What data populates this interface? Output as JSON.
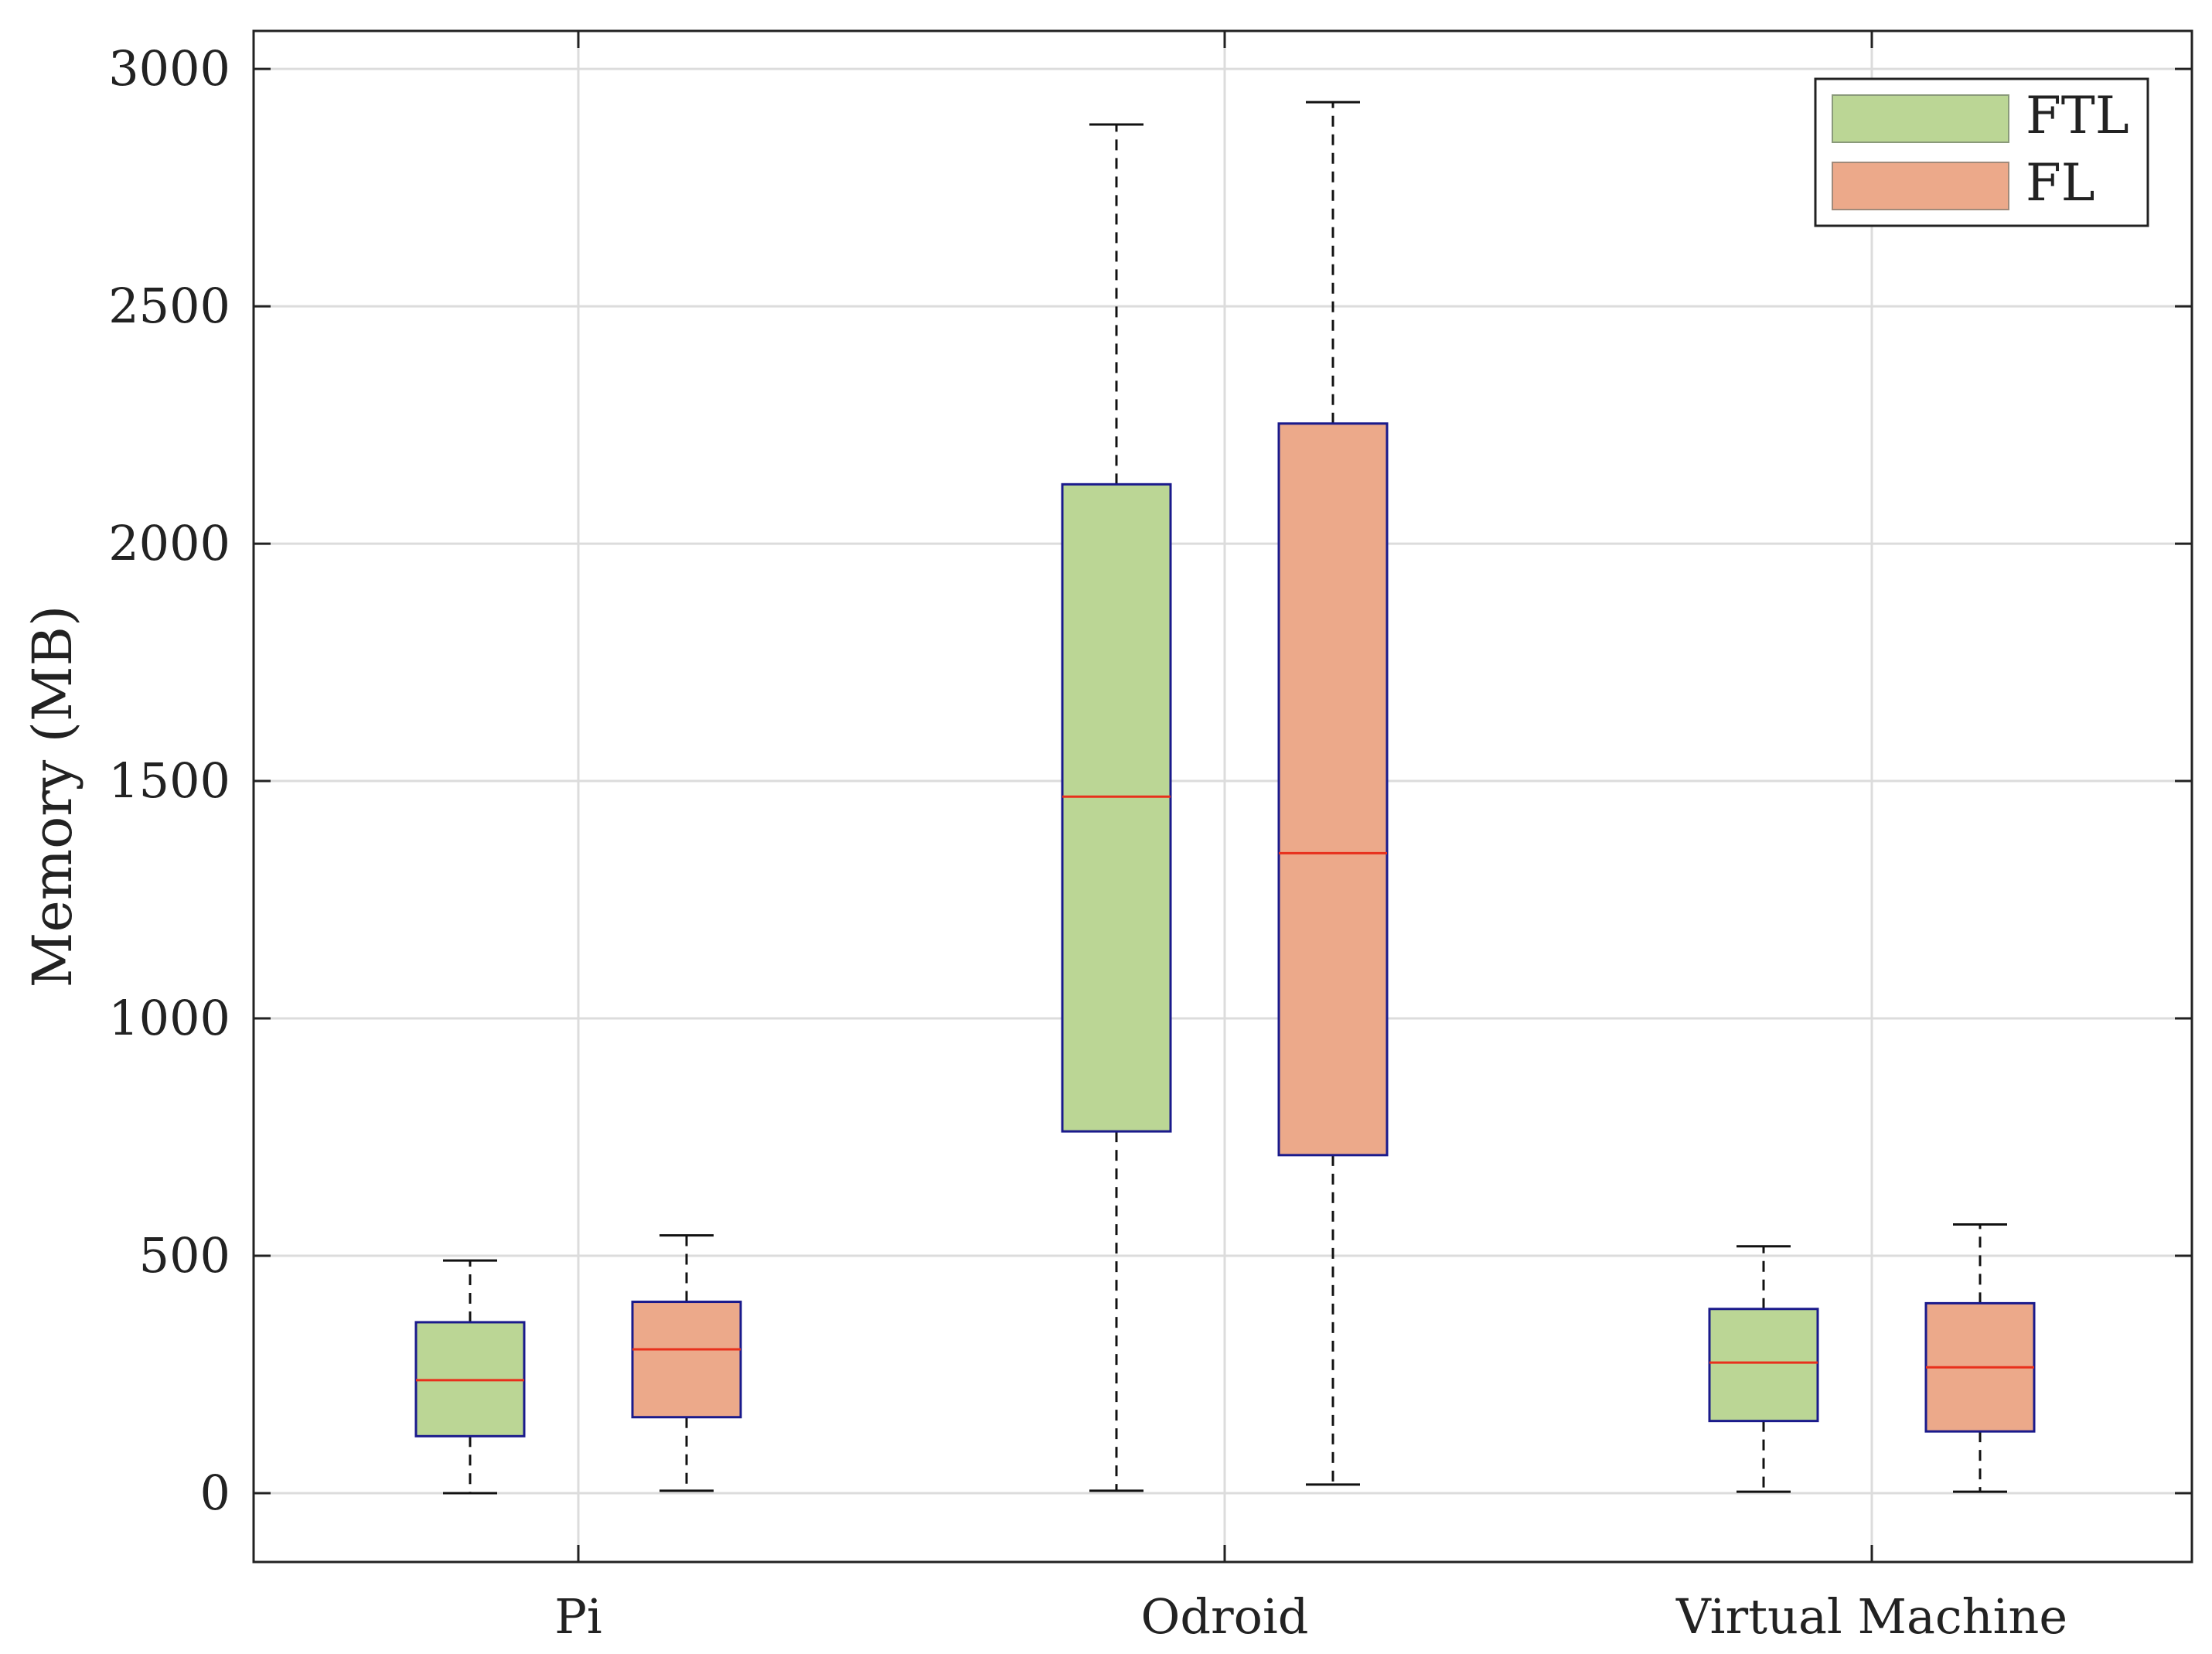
{
  "chart_data": {
    "type": "boxplot",
    "title": "",
    "xlabel": "",
    "ylabel": "Memory (MB)",
    "ylim": [
      -145,
      3080
    ],
    "yticks": [
      0,
      500,
      1000,
      1500,
      2000,
      2500,
      3000
    ],
    "ytick_labels": [
      "0",
      "500",
      "1000",
      "1500",
      "2000",
      "2500",
      "3000"
    ],
    "grid": true,
    "legend_position": "top-right",
    "categories": [
      "Pi",
      "Odroid",
      "Virtual Machine"
    ],
    "series": [
      {
        "name": "FTL",
        "color": "#bbd695",
        "boxes": [
          {
            "category": "Pi",
            "whisker_low": 0,
            "q1": 120,
            "median": 238,
            "q3": 360,
            "whisker_high": 490
          },
          {
            "category": "Odroid",
            "whisker_low": 5,
            "q1": 762,
            "median": 1467,
            "q3": 2125,
            "whisker_high": 2883
          },
          {
            "category": "Virtual Machine",
            "whisker_low": 3,
            "q1": 152,
            "median": 275,
            "q3": 388,
            "whisker_high": 520
          }
        ]
      },
      {
        "name": "FL",
        "color": "#eca98a",
        "boxes": [
          {
            "category": "Pi",
            "whisker_low": 5,
            "q1": 160,
            "median": 303,
            "q3": 403,
            "whisker_high": 543
          },
          {
            "category": "Odroid",
            "whisker_low": 18,
            "q1": 712,
            "median": 1348,
            "q3": 2253,
            "whisker_high": 2930
          },
          {
            "category": "Virtual Machine",
            "whisker_low": 3,
            "q1": 130,
            "median": 265,
            "q3": 400,
            "whisker_high": 566
          }
        ]
      }
    ],
    "colors": {
      "box_edge": "#1a1a8c",
      "median": "#e8301c",
      "whisker": "#111111",
      "grid": "#dcdcdc",
      "axis": "#222222"
    }
  }
}
